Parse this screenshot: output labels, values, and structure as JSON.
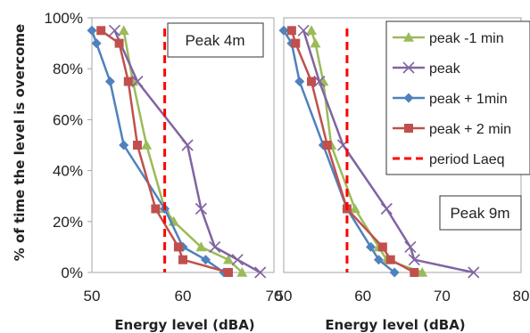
{
  "chart_data": {
    "type": "line",
    "ylabel": "% of time the level is overcome",
    "y_ticks": [
      "0%",
      "20%",
      "40%",
      "60%",
      "80%",
      "100%"
    ],
    "ylim": [
      0,
      100
    ],
    "grid": false,
    "legend": {
      "placement": "top-right of right panel",
      "entries": [
        "peak -1 min",
        "peak",
        "peak + 1min",
        "peak + 2 min",
        "period Laeq"
      ]
    },
    "colors": {
      "peak -1 min": "#9BBB59",
      "peak": "#8064A2",
      "peak + 1min": "#4F81BD",
      "peak + 2 min": "#C0504D",
      "period Laeq": "#FF0000"
    },
    "panels": [
      {
        "label": "Peak 4m",
        "xlabel": "Energy level (dBA)",
        "xlim": [
          50,
          70
        ],
        "x_ticks": [
          "50",
          "60",
          "70"
        ],
        "laeq": 58,
        "series": [
          {
            "name": "peak -1 min",
            "marker": "triangle",
            "points": [
              [
                53.5,
                95
              ],
              [
                54.5,
                75
              ],
              [
                56,
                50
              ],
              [
                58,
                25
              ],
              [
                59,
                20
              ],
              [
                62,
                10
              ],
              [
                65,
                5
              ],
              [
                66.5,
                0
              ]
            ]
          },
          {
            "name": "peak",
            "marker": "x",
            "points": [
              [
                52.5,
                95
              ],
              [
                55,
                75
              ],
              [
                60.5,
                50
              ],
              [
                62,
                25
              ],
              [
                63.5,
                10
              ],
              [
                66,
                5
              ],
              [
                68.5,
                0
              ]
            ]
          },
          {
            "name": "peak + 1min",
            "marker": "diamond",
            "points": [
              [
                50,
                95
              ],
              [
                50.5,
                90
              ],
              [
                52,
                75
              ],
              [
                53.5,
                50
              ],
              [
                58,
                25
              ],
              [
                60,
                10
              ],
              [
                62.5,
                5
              ],
              [
                64.5,
                0
              ]
            ]
          },
          {
            "name": "peak + 2 min",
            "marker": "square",
            "points": [
              [
                51,
                95
              ],
              [
                53,
                90
              ],
              [
                54,
                75
              ],
              [
                55,
                50
              ],
              [
                57,
                25
              ],
              [
                59.5,
                10
              ],
              [
                60,
                5
              ],
              [
                65,
                0
              ]
            ]
          }
        ]
      },
      {
        "label": "Peak 9m",
        "xlabel": "Energy level (dBA)",
        "xlim": [
          50,
          80
        ],
        "x_ticks": [
          "50",
          "60",
          "70",
          "80"
        ],
        "laeq": 58,
        "series": [
          {
            "name": "peak -1 min",
            "marker": "triangle",
            "points": [
              [
                53.5,
                95
              ],
              [
                54,
                90
              ],
              [
                55,
                75
              ],
              [
                56,
                50
              ],
              [
                59,
                25
              ],
              [
                62,
                10
              ],
              [
                63,
                5
              ],
              [
                67.5,
                0
              ]
            ]
          },
          {
            "name": "peak",
            "marker": "x",
            "points": [
              [
                52.5,
                95
              ],
              [
                54.5,
                75
              ],
              [
                57.5,
                50
              ],
              [
                63,
                25
              ],
              [
                66,
                10
              ],
              [
                66.5,
                5
              ],
              [
                74,
                0
              ]
            ]
          },
          {
            "name": "peak + 1min",
            "marker": "diamond",
            "points": [
              [
                50,
                95
              ],
              [
                51,
                90
              ],
              [
                52,
                75
              ],
              [
                55,
                50
              ],
              [
                58,
                25
              ],
              [
                61,
                10
              ],
              [
                62,
                5
              ],
              [
                64,
                0
              ]
            ]
          },
          {
            "name": "peak + 2 min",
            "marker": "square",
            "points": [
              [
                51,
                95
              ],
              [
                51.5,
                90
              ],
              [
                53.5,
                75
              ],
              [
                55.5,
                50
              ],
              [
                58,
                25
              ],
              [
                62.5,
                10
              ],
              [
                63.5,
                5
              ],
              [
                66.5,
                0
              ]
            ]
          }
        ]
      }
    ]
  }
}
